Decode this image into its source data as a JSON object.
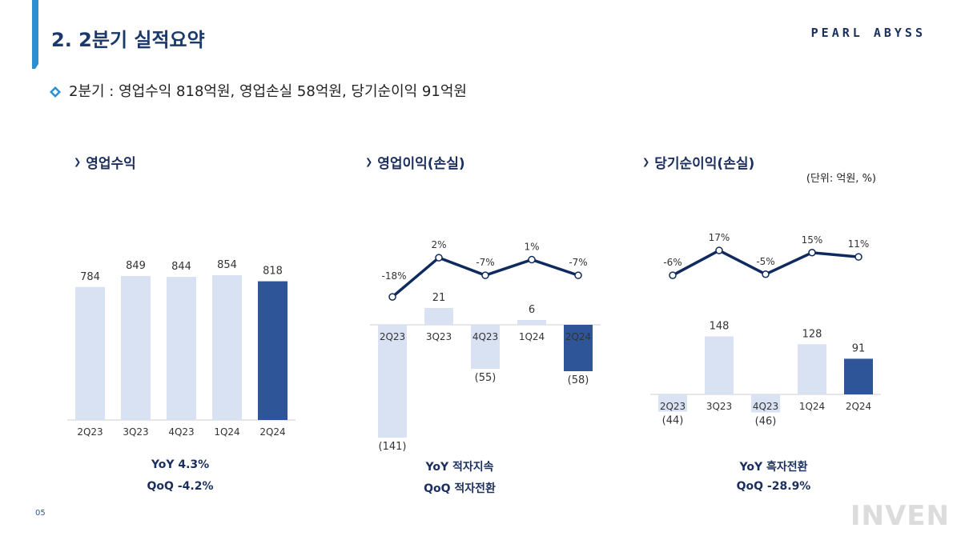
{
  "header": {
    "title": "2. 2분기 실적요약",
    "brand": "PEARL ABYSS"
  },
  "summary": "2분기 : 영업수익 818억원, 영업손실 58억원, 당기순이익 91억원",
  "unit_note": "(단위: 억원, %)",
  "page_number": "05",
  "watermark": "INVEN",
  "colors": {
    "light_bar": "#d9e2f3",
    "highlight_bar": "#2e5597",
    "line": "#0f2a5e",
    "accent": "#2c8fd1"
  },
  "sections": {
    "revenue": {
      "title": "영업수익",
      "yoy": "YoY  4.3%",
      "qoq": "QoQ  -4.2%"
    },
    "op_income": {
      "title": "영업이익(손실)",
      "yoy": "YoY  적자지속",
      "qoq": "QoQ  적자전환"
    },
    "net_income": {
      "title": "당기순이익(손실)",
      "yoy": "YoY  흑자전환",
      "qoq": "QoQ  -28.9%"
    }
  },
  "chart_data": [
    {
      "type": "bar",
      "categories": [
        "2Q23",
        "3Q23",
        "4Q23",
        "1Q24",
        "2Q24"
      ],
      "values": [
        784,
        849,
        844,
        854,
        818
      ],
      "labels": [
        "784",
        "849",
        "844",
        "854",
        "818"
      ],
      "highlight_index": 4
    },
    {
      "type": "bar",
      "categories": [
        "2Q23",
        "3Q23",
        "4Q23",
        "1Q24",
        "2Q24"
      ],
      "values": [
        -141,
        21,
        -55,
        6,
        -58
      ],
      "labels": [
        "(141)",
        "21",
        "(55)",
        "6",
        "(58)"
      ],
      "highlight_index": 4,
      "margin_line": {
        "values": [
          -18,
          2,
          -7,
          1,
          -7
        ],
        "labels": [
          "-18%",
          "2%",
          "-7%",
          "1%",
          "-7%"
        ]
      }
    },
    {
      "type": "bar",
      "categories": [
        "2Q23",
        "3Q23",
        "4Q23",
        "1Q24",
        "2Q24"
      ],
      "values": [
        -44,
        148,
        -46,
        128,
        91
      ],
      "labels": [
        "(44)",
        "148",
        "(46)",
        "128",
        "91"
      ],
      "highlight_index": 4,
      "margin_line": {
        "values": [
          -6,
          17,
          -5,
          15,
          11
        ],
        "labels": [
          "-6%",
          "17%",
          "-5%",
          "15%",
          "11%"
        ]
      }
    }
  ]
}
